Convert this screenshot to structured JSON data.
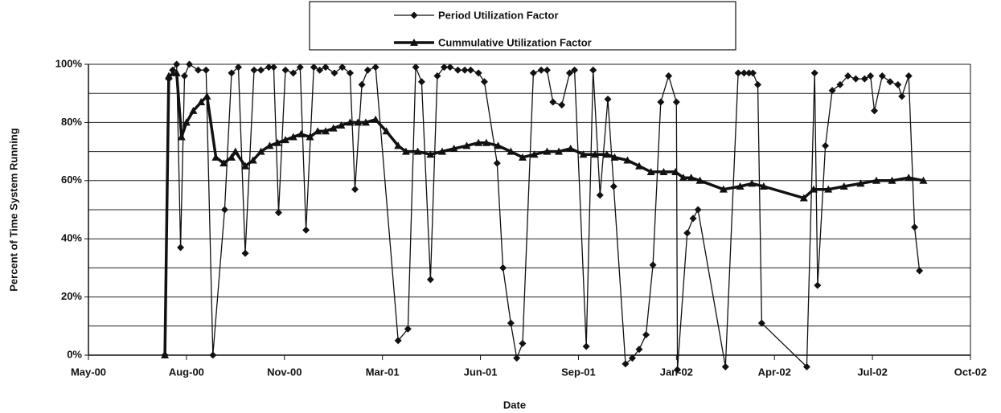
{
  "chart_data": {
    "type": "line",
    "x_label": "Date",
    "y_label": "Percent of Time System Running",
    "xlim": [
      0,
      900
    ],
    "xticks": [
      {
        "value": 0,
        "label": "May-00"
      },
      {
        "value": 100,
        "label": "Aug-00"
      },
      {
        "value": 200,
        "label": "Nov-00"
      },
      {
        "value": 300,
        "label": "Mar-01"
      },
      {
        "value": 400,
        "label": "Jun-01"
      },
      {
        "value": 500,
        "label": "Sep-01"
      },
      {
        "value": 600,
        "label": "Jan-02"
      },
      {
        "value": 700,
        "label": "Apr-02"
      },
      {
        "value": 800,
        "label": "Jul-02"
      },
      {
        "value": 900,
        "label": "Oct-02"
      }
    ],
    "ylim": [
      0,
      100
    ],
    "yticks": [
      {
        "value": 0,
        "label": "0%"
      },
      {
        "value": 20,
        "label": "20%"
      },
      {
        "value": 40,
        "label": "40%"
      },
      {
        "value": 60,
        "label": "60%"
      },
      {
        "value": 80,
        "label": "80%"
      },
      {
        "value": 100,
        "label": "100%"
      }
    ],
    "ygrid": [
      0,
      10,
      20,
      30,
      40,
      50,
      60,
      70,
      80,
      90,
      100
    ],
    "legend": "top",
    "series": [
      {
        "name": "Period Utilization Factor",
        "color": "#111111",
        "marker": "diamond",
        "line_width": 1.3,
        "x": [
          78,
          82,
          86,
          90,
          94,
          98,
          103,
          112,
          120,
          127,
          139,
          146,
          153,
          160,
          169,
          176,
          184,
          189,
          194,
          201,
          209,
          216,
          222,
          230,
          236,
          242,
          251,
          259,
          267,
          272,
          279,
          285,
          293,
          316,
          326,
          334,
          340,
          349,
          356,
          363,
          369,
          377,
          384,
          390,
          398,
          404,
          417,
          423,
          431,
          437,
          443,
          454,
          462,
          468,
          474,
          483,
          491,
          496,
          508,
          515,
          522,
          530,
          536,
          548,
          555,
          562,
          569,
          576,
          584,
          592,
          600,
          601,
          611,
          617,
          622,
          650,
          663,
          669,
          674,
          678,
          683,
          687,
          733,
          741,
          744,
          752,
          759,
          767,
          775,
          783,
          792,
          798,
          802,
          810,
          818,
          826,
          830,
          837,
          843,
          848
        ],
        "values": [
          0,
          95,
          98,
          100,
          37,
          96,
          100,
          98,
          98,
          0,
          50,
          97,
          99,
          35,
          98,
          98,
          99,
          99,
          49,
          98,
          97,
          99,
          43,
          99,
          98,
          99,
          97,
          99,
          97,
          57,
          93,
          98,
          99,
          5,
          9,
          99,
          94,
          26,
          96,
          99,
          99,
          98,
          98,
          98,
          97,
          94,
          66,
          30,
          11,
          -1,
          4,
          97,
          98,
          98,
          87,
          86,
          97,
          98,
          3,
          98,
          55,
          88,
          58,
          -3,
          -1,
          2,
          7,
          31,
          87,
          96,
          87,
          -5,
          42,
          47,
          50,
          -4,
          97,
          97,
          97,
          97,
          93,
          11,
          -4,
          97,
          24,
          72,
          91,
          93,
          96,
          95,
          95,
          96,
          84,
          96,
          94,
          93,
          89,
          96,
          44,
          29
        ]
      },
      {
        "name": "Cummulative Utilization Factor",
        "color": "#111111",
        "marker": "triangle",
        "line_width": 3.5,
        "x": [
          78,
          82,
          90,
          95,
          100,
          107,
          115,
          121,
          130,
          138,
          146,
          150,
          160,
          168,
          176,
          185,
          193,
          201,
          209,
          217,
          226,
          234,
          242,
          250,
          258,
          267,
          275,
          283,
          293,
          304,
          316,
          324,
          336,
          349,
          361,
          373,
          386,
          398,
          406,
          418,
          431,
          443,
          455,
          468,
          480,
          492,
          505,
          517,
          529,
          537,
          550,
          562,
          574,
          587,
          599,
          607,
          615,
          624,
          648,
          665,
          677,
          689,
          730,
          740,
          755,
          771,
          788,
          804,
          820,
          837,
          852
        ],
        "values": [
          0,
          96,
          97,
          75,
          80,
          84,
          87,
          89,
          68,
          66,
          68,
          70,
          65,
          67,
          70,
          72,
          73,
          74,
          75,
          76,
          75,
          77,
          77,
          78,
          79,
          80,
          80,
          80,
          81,
          77,
          72,
          70,
          70,
          69,
          70,
          71,
          72,
          73,
          73,
          72,
          70,
          68,
          69,
          70,
          70,
          71,
          69,
          69,
          69,
          68,
          67,
          65,
          63,
          63,
          63,
          61,
          61,
          60,
          57,
          58,
          59,
          58,
          54,
          57,
          57,
          58,
          59,
          60,
          60,
          61,
          60
        ]
      }
    ]
  }
}
